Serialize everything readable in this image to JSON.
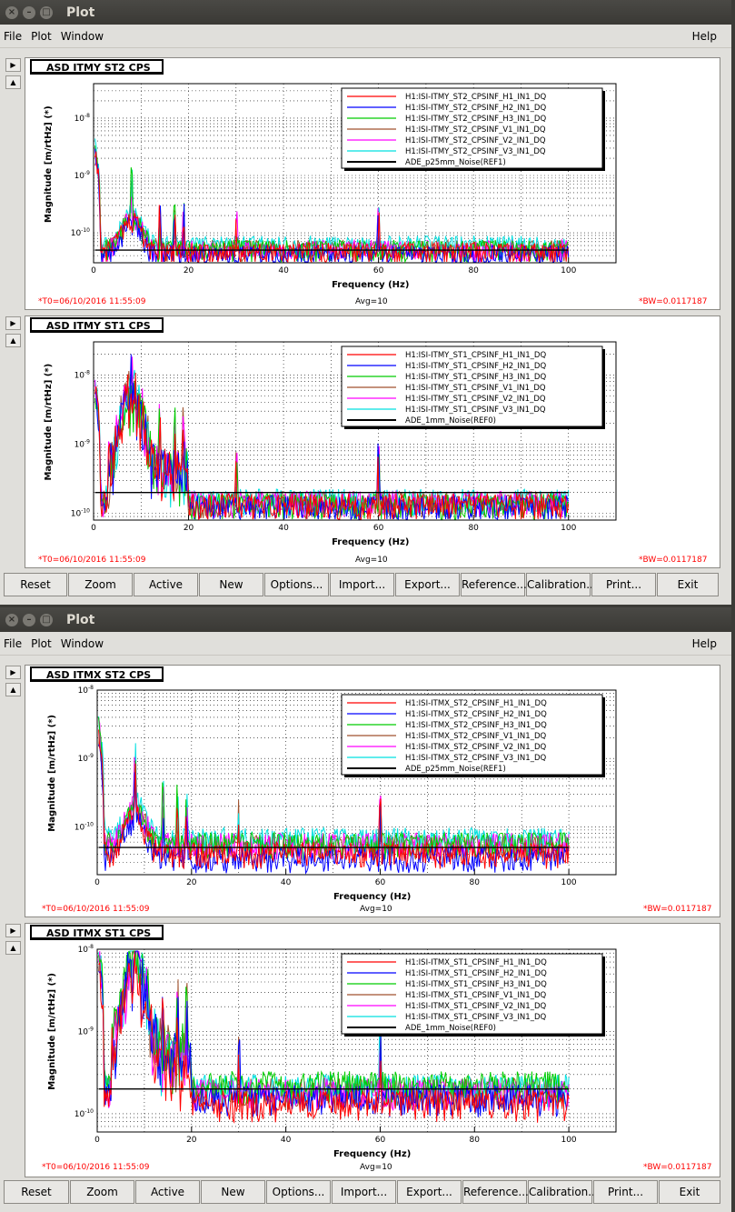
{
  "windows": [
    {
      "title": "Plot",
      "menu": {
        "file": "File",
        "plot": "Plot",
        "window": "Window",
        "help": "Help"
      },
      "panels": [
        {
          "tab_title": "ASD ITMY ST2 CPS",
          "footer": {
            "t0": "*T0=06/10/2016 11:55:09",
            "avg": "Avg=10",
            "bw": "*BW=0.0117187"
          },
          "chart_data": {
            "type": "line",
            "xlabel": "Frequency (Hz)",
            "ylabel": "Magnitude [m/rtHz] (*)",
            "xlim": [
              0,
              110
            ],
            "ylim": [
              3e-11,
              4e-08
            ],
            "log_y": true,
            "x_ticks": [
              "0",
              "20",
              "40",
              "60",
              "80",
              "100"
            ],
            "y_ticks": [
              "10^-10",
              "10^-9",
              "10^-8"
            ],
            "grid": true,
            "legend_placement": "top-right",
            "series": [
              {
                "name": "H1:ISI-ITMY_ST2_CPSINF_H1_IN1_DQ",
                "color": "#ff0000",
                "floor": 4.5e-11
              },
              {
                "name": "H1:ISI-ITMY_ST2_CPSINF_H2_IN1_DQ",
                "color": "#0000ff",
                "floor": 4e-11
              },
              {
                "name": "H1:ISI-ITMY_ST2_CPSINF_H3_IN1_DQ",
                "color": "#00cc00",
                "floor": 5e-11
              },
              {
                "name": "H1:ISI-ITMY_ST2_CPSINF_V1_IN1_DQ",
                "color": "#a0522d",
                "floor": 5e-11
              },
              {
                "name": "H1:ISI-ITMY_ST2_CPSINF_V2_IN1_DQ",
                "color": "#ff00ff",
                "floor": 5e-11
              },
              {
                "name": "H1:ISI-ITMY_ST2_CPSINF_V3_IN1_DQ",
                "color": "#00e0e0",
                "floor": 6e-11
              },
              {
                "name": "ADE_p25mm_Noise(REF1)",
                "color": "#000000",
                "floor": 5e-11,
                "reference": true
              }
            ]
          }
        },
        {
          "tab_title": "ASD ITMY ST1 CPS",
          "footer": {
            "t0": "*T0=06/10/2016 11:55:09",
            "avg": "Avg=10",
            "bw": "*BW=0.0117187"
          },
          "chart_data": {
            "type": "line",
            "xlabel": "Frequency (Hz)",
            "ylabel": "Magnitude [m/rtHz] (*)",
            "xlim": [
              0,
              110
            ],
            "ylim": [
              8e-11,
              3e-08
            ],
            "log_y": true,
            "x_ticks": [
              "0",
              "20",
              "40",
              "60",
              "80",
              "100"
            ],
            "y_ticks": [
              "10^-10",
              "10^-9",
              "10^-8"
            ],
            "grid": true,
            "legend_placement": "top-right",
            "series": [
              {
                "name": "H1:ISI-ITMY_ST1_CPSINF_H1_IN1_DQ",
                "color": "#ff0000",
                "floor": 1.3e-10
              },
              {
                "name": "H1:ISI-ITMY_ST1_CPSINF_H2_IN1_DQ",
                "color": "#0000ff",
                "floor": 1.2e-10
              },
              {
                "name": "H1:ISI-ITMY_ST1_CPSINF_H3_IN1_DQ",
                "color": "#00cc00",
                "floor": 1.3e-10
              },
              {
                "name": "H1:ISI-ITMY_ST1_CPSINF_V1_IN1_DQ",
                "color": "#a0522d",
                "floor": 1.4e-10
              },
              {
                "name": "H1:ISI-ITMY_ST1_CPSINF_V2_IN1_DQ",
                "color": "#ff00ff",
                "floor": 1.4e-10
              },
              {
                "name": "H1:ISI-ITMY_ST1_CPSINF_V3_IN1_DQ",
                "color": "#00e0e0",
                "floor": 1.5e-10
              },
              {
                "name": "ADE_1mm_Noise(REF0)",
                "color": "#000000",
                "floor": 2e-10,
                "reference": true
              }
            ]
          }
        }
      ],
      "buttons": [
        "Reset",
        "Zoom",
        "Active",
        "New",
        "Options...",
        "Import...",
        "Export...",
        "Reference...",
        "Calibration...",
        "Print...",
        "Exit"
      ]
    },
    {
      "title": "Plot",
      "menu": {
        "file": "File",
        "plot": "Plot",
        "window": "Window",
        "help": "Help"
      },
      "panels": [
        {
          "tab_title": "ASD ITMX ST2 CPS",
          "footer": {
            "t0": "*T0=06/10/2016 11:55:09",
            "avg": "Avg=10",
            "bw": "*BW=0.0117187"
          },
          "chart_data": {
            "type": "line",
            "xlabel": "Frequency (Hz)",
            "ylabel": "Magnitude [m/rtHz] (*)",
            "xlim": [
              0,
              110
            ],
            "ylim": [
              2e-11,
              1e-08
            ],
            "log_y": true,
            "x_ticks": [
              "0",
              "20",
              "40",
              "60",
              "80",
              "100"
            ],
            "y_ticks": [
              "10^-10",
              "10^-9",
              "10^-8"
            ],
            "grid": true,
            "legend_placement": "top-right",
            "series": [
              {
                "name": "H1:ISI-ITMX_ST2_CPSINF_H1_IN1_DQ",
                "color": "#ff0000",
                "floor": 4e-11
              },
              {
                "name": "H1:ISI-ITMX_ST2_CPSINF_H2_IN1_DQ",
                "color": "#0000ff",
                "floor": 3.5e-11
              },
              {
                "name": "H1:ISI-ITMX_ST2_CPSINF_H3_IN1_DQ",
                "color": "#00cc00",
                "floor": 5.5e-11
              },
              {
                "name": "H1:ISI-ITMX_ST2_CPSINF_V1_IN1_DQ",
                "color": "#a0522d",
                "floor": 5e-11
              },
              {
                "name": "H1:ISI-ITMX_ST2_CPSINF_V2_IN1_DQ",
                "color": "#ff00ff",
                "floor": 5.5e-11
              },
              {
                "name": "H1:ISI-ITMX_ST2_CPSINF_V3_IN1_DQ",
                "color": "#00e0e0",
                "floor": 6.5e-11
              },
              {
                "name": "ADE_p25mm_Noise(REF1)",
                "color": "#000000",
                "floor": 5e-11,
                "reference": true
              }
            ]
          }
        },
        {
          "tab_title": "ASD ITMX ST1 CPS",
          "footer": {
            "t0": "*T0=06/10/2016 11:55:09",
            "avg": "Avg=10",
            "bw": "*BW=0.0117187"
          },
          "chart_data": {
            "type": "line",
            "xlabel": "Frequency (Hz)",
            "ylabel": "Magnitude [m/rtHz] (*)",
            "xlim": [
              0,
              110
            ],
            "ylim": [
              6e-11,
              1e-08
            ],
            "log_y": true,
            "x_ticks": [
              "0",
              "20",
              "40",
              "60",
              "80",
              "100"
            ],
            "y_ticks": [
              "10^-10",
              "10^-9",
              "10^-8"
            ],
            "grid": true,
            "legend_placement": "top-right",
            "series": [
              {
                "name": "H1:ISI-ITMX_ST1_CPSINF_H1_IN1_DQ",
                "color": "#ff0000",
                "floor": 1.3e-10
              },
              {
                "name": "H1:ISI-ITMX_ST1_CPSINF_H2_IN1_DQ",
                "color": "#0000ff",
                "floor": 1.5e-10
              },
              {
                "name": "H1:ISI-ITMX_ST1_CPSINF_H3_IN1_DQ",
                "color": "#00cc00",
                "floor": 2.2e-10
              },
              {
                "name": "H1:ISI-ITMX_ST1_CPSINF_V1_IN1_DQ",
                "color": "#a0522d",
                "floor": 1.8e-10
              },
              {
                "name": "H1:ISI-ITMX_ST1_CPSINF_V2_IN1_DQ",
                "color": "#ff00ff",
                "floor": 1.8e-10
              },
              {
                "name": "H1:ISI-ITMX_ST1_CPSINF_V3_IN1_DQ",
                "color": "#00e0e0",
                "floor": 2e-10
              },
              {
                "name": "ADE_1mm_Noise(REF0)",
                "color": "#000000",
                "floor": 2e-10,
                "reference": true
              }
            ]
          }
        }
      ],
      "buttons": [
        "Reset",
        "Zoom",
        "Active",
        "New",
        "Options...",
        "Import...",
        "Export...",
        "Reference...",
        "Calibration...",
        "Print...",
        "Exit"
      ]
    }
  ]
}
